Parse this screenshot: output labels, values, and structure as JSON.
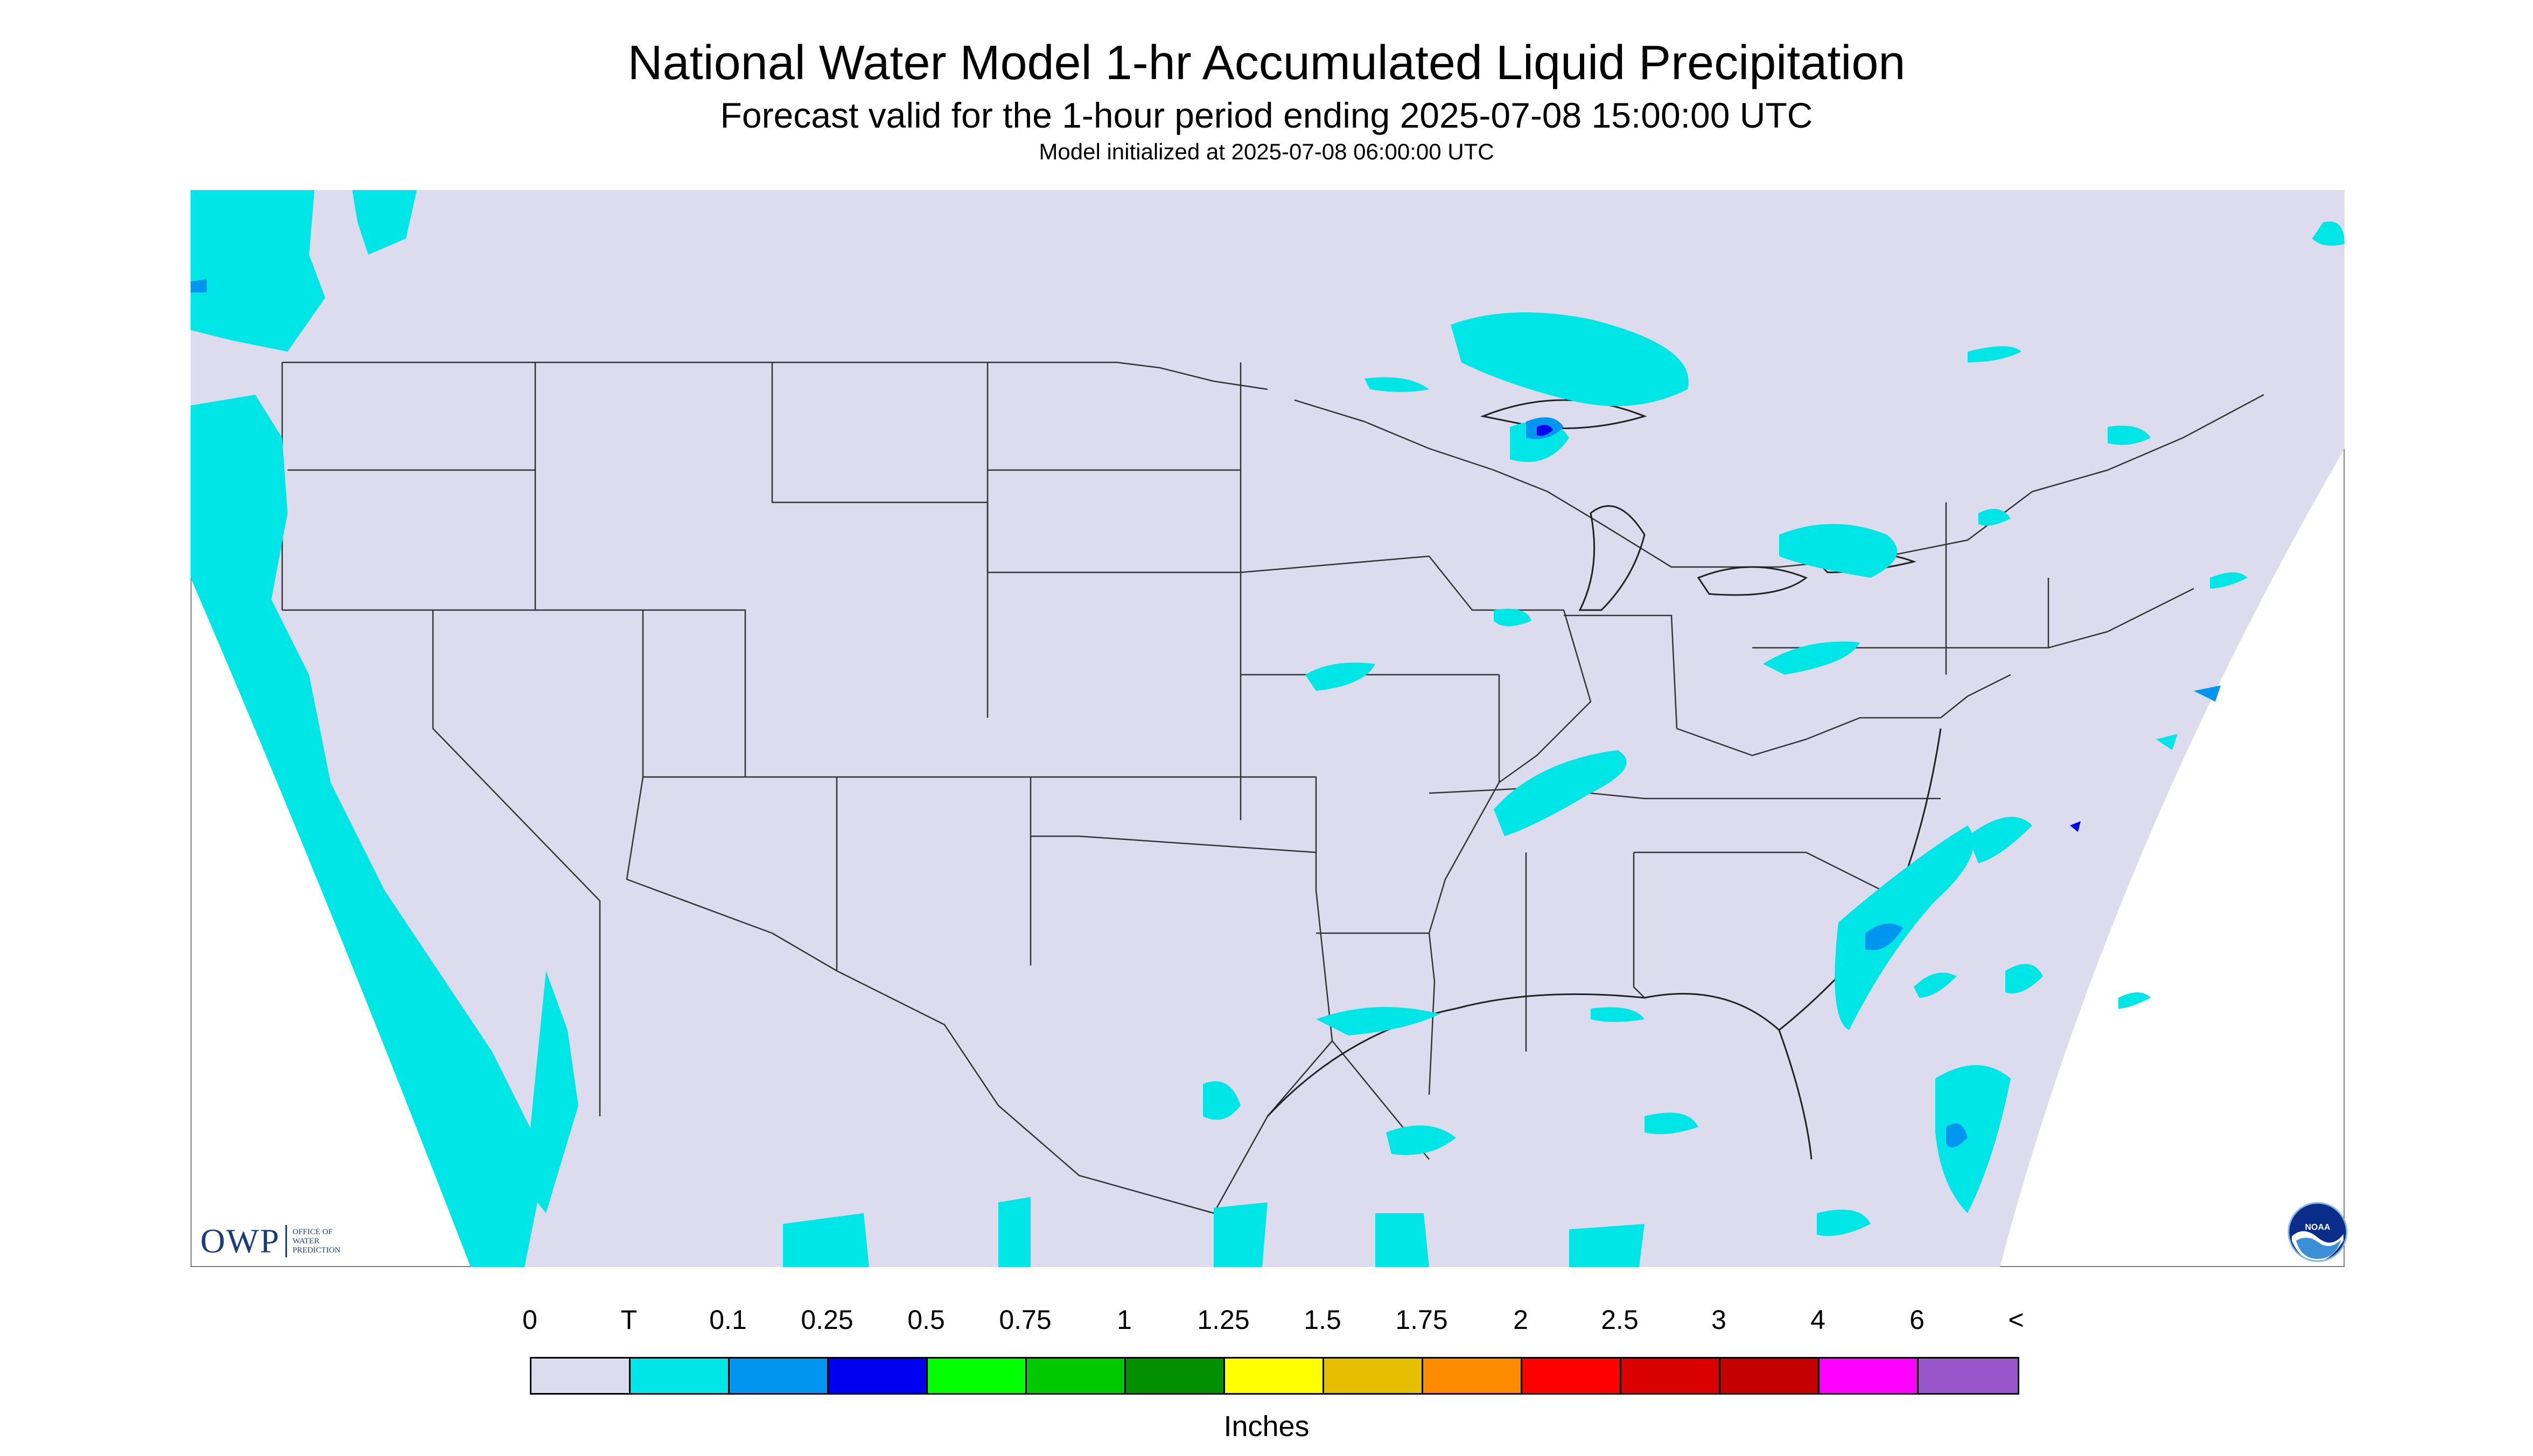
{
  "title": "National Water Model 1-hr Accumulated Liquid Precipitation",
  "subtitle": "Forecast valid for the 1-hour period ending 2025-07-08 15:00:00 UTC",
  "init": "Model initialized at 2025-07-08 06:00:00 UTC",
  "units": "Inches",
  "legend": {
    "labels": [
      "0",
      "T",
      "0.1",
      "0.25",
      "0.5",
      "0.75",
      "1",
      "1.25",
      "1.5",
      "1.75",
      "2",
      "2.5",
      "3",
      "4",
      "6",
      "<"
    ],
    "colors": [
      "#dcdcee",
      "#00e6e6",
      "#0096f0",
      "#0000f0",
      "#00ff00",
      "#00c800",
      "#009000",
      "#ffff00",
      "#e6c000",
      "#ff8c00",
      "#ff0000",
      "#d80000",
      "#c40000",
      "#ff00ff",
      "#9955c9"
    ]
  },
  "branding": {
    "owp_short": "OWP",
    "owp_long": [
      "OFFICE OF",
      "WATER",
      "PREDICTION"
    ],
    "noaa": "NOAA"
  },
  "colors": {
    "background": "#dcdcee",
    "trace": "#00e6e6",
    "light": "#0096f0",
    "moderate": "#0000f0",
    "border": "#333333"
  }
}
